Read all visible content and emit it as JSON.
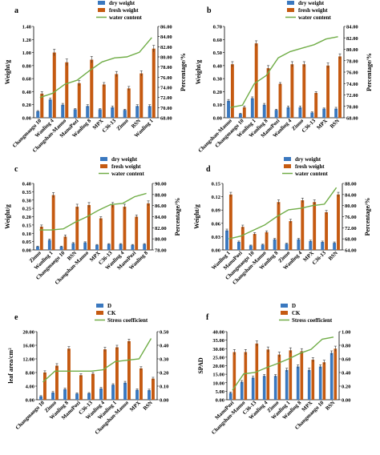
{
  "colors": {
    "bar1": "#3a78bf",
    "bar2": "#c55a11",
    "line": "#70ad47",
    "err": "#333333",
    "axis": "#000000"
  },
  "chart_data": [
    {
      "panel": "a",
      "type": "bar",
      "legend": [
        "dry weight",
        "fresh weight",
        "water content"
      ],
      "ylabel_left": "Weight/g",
      "ylabel_right": "Percentage/%",
      "ylim_left": [
        0,
        1.4
      ],
      "yticks_left": [
        "0.00",
        "0.20",
        "0.40",
        "0.60",
        "0.80",
        "1.00",
        "1.20",
        "1.40"
      ],
      "ylim_right": [
        68,
        86
      ],
      "yticks_right": [
        "68.00",
        "70.00",
        "72.00",
        "74.00",
        "76.00",
        "78.00",
        "80.00",
        "82.00",
        "84.00",
        "86.00"
      ],
      "categories": [
        "Changmaogu 10",
        "Wanling 4",
        "Changshan-Manuo",
        "ManuPozi",
        "Wanling 8",
        "MPX",
        "C36-13",
        "Zinuo",
        "BSN",
        "Wanling 1"
      ],
      "series": [
        {
          "name": "dry weight",
          "kind": "bar",
          "values": [
            0.1,
            0.28,
            0.2,
            0.13,
            0.18,
            0.13,
            0.16,
            0.12,
            0.18,
            0.18
          ],
          "errors": [
            0.01,
            0.02,
            0.02,
            0.01,
            0.02,
            0.01,
            0.02,
            0.01,
            0.02,
            0.02
          ]
        },
        {
          "name": "fresh weight",
          "kind": "bar",
          "values": [
            0.37,
            1.0,
            0.85,
            0.53,
            0.89,
            0.51,
            0.67,
            0.45,
            0.68,
            1.06
          ],
          "errors": [
            0.03,
            0.05,
            0.05,
            0.04,
            0.05,
            0.03,
            0.04,
            0.03,
            0.04,
            0.05
          ]
        },
        {
          "name": "water content",
          "kind": "line",
          "axis": "right",
          "values": [
            72.0,
            72.8,
            74.6,
            75.4,
            77.3,
            79.0,
            79.8,
            80.0,
            80.9,
            83.8
          ]
        }
      ]
    },
    {
      "panel": "b",
      "type": "bar",
      "legend": [
        "dry weight",
        "fresh weight",
        "water content"
      ],
      "ylabel_left": "Weight/g",
      "ylabel_right": "Percentage/%",
      "ylim_left": [
        0,
        0.7
      ],
      "yticks_left": [
        "0.00",
        "0.10",
        "0.20",
        "0.30",
        "0.40",
        "0.50",
        "0.60",
        "0.70"
      ],
      "ylim_right": [
        68,
        84
      ],
      "yticks_right": [
        "68.00",
        "70.00",
        "72.00",
        "74.00",
        "76.00",
        "78.00",
        "80.00",
        "82.00",
        "84.00"
      ],
      "categories": [
        "Changshan-Manuo",
        "Changmaogu 10",
        "Wanling 1",
        "Wanling 8",
        "ManuPozi",
        "Wanling 4",
        "Zinuo",
        "C36-13",
        "MPX",
        "BSN"
      ],
      "series": [
        {
          "name": "dry weight",
          "kind": "bar",
          "values": [
            0.13,
            0.03,
            0.15,
            0.1,
            0.06,
            0.08,
            0.08,
            0.04,
            0.07,
            0.07
          ],
          "errors": [
            0.01,
            0.005,
            0.01,
            0.01,
            0.005,
            0.01,
            0.01,
            0.005,
            0.005,
            0.01
          ]
        },
        {
          "name": "fresh weight",
          "kind": "bar",
          "values": [
            0.41,
            0.08,
            0.57,
            0.38,
            0.26,
            0.41,
            0.41,
            0.19,
            0.4,
            0.47
          ],
          "errors": [
            0.02,
            0.01,
            0.02,
            0.02,
            0.01,
            0.02,
            0.02,
            0.01,
            0.02,
            0.02
          ]
        },
        {
          "name": "water content",
          "kind": "line",
          "axis": "right",
          "values": [
            69.8,
            70.2,
            74.0,
            75.4,
            78.5,
            79.6,
            80.2,
            80.8,
            81.8,
            82.2
          ]
        }
      ]
    },
    {
      "panel": "c",
      "type": "bar",
      "legend": [
        "dry weight",
        "fresh weight",
        "water content"
      ],
      "ylabel_left": "Weight/g",
      "ylabel_right": "Percentage/%",
      "ylim_left": [
        0,
        0.4
      ],
      "yticks_left": [
        "0.00",
        "0.05",
        "0.10",
        "0.15",
        "0.20",
        "0.25",
        "0.30",
        "0.35",
        "0.40"
      ],
      "ylim_right": [
        78,
        90
      ],
      "yticks_right": [
        "78.00",
        "80.00",
        "82.00",
        "84.00",
        "86.00",
        "88.00",
        "90.00"
      ],
      "categories": [
        "Zinuo",
        "Wanling 1",
        "Changmaogu 10",
        "BSN",
        "Changshan-Manuo",
        "MPX",
        "C36-13",
        "Wanling 4",
        "ManuPozi",
        "Wanling 8"
      ],
      "series": [
        {
          "name": "dry weight",
          "kind": "bar",
          "values": [
            0.02,
            0.06,
            0.02,
            0.04,
            0.045,
            0.03,
            0.035,
            0.035,
            0.03,
            0.035
          ],
          "errors": [
            0.003,
            0.005,
            0.003,
            0.004,
            0.004,
            0.003,
            0.003,
            0.003,
            0.003,
            0.003
          ]
        },
        {
          "name": "fresh weight",
          "kind": "bar",
          "values": [
            0.14,
            0.33,
            0.08,
            0.26,
            0.27,
            0.19,
            0.27,
            0.26,
            0.2,
            0.28
          ],
          "errors": [
            0.01,
            0.015,
            0.01,
            0.015,
            0.015,
            0.01,
            0.015,
            0.015,
            0.01,
            0.015
          ]
        },
        {
          "name": "water content",
          "kind": "line",
          "axis": "right",
          "values": [
            81.6,
            81.6,
            81.8,
            83.0,
            84.0,
            85.2,
            86.2,
            86.4,
            87.6,
            88.2
          ]
        }
      ]
    },
    {
      "panel": "d",
      "type": "bar",
      "legend": [
        "dry weight",
        "fresh weight",
        "water content"
      ],
      "ylabel_left": "Weight/g",
      "ylabel_right": "Percentage/%",
      "ylim_left": [
        0,
        0.15
      ],
      "yticks_left": [
        "0.00",
        "0.03",
        "0.06",
        "0.09",
        "0.12",
        "0.15"
      ],
      "ylim_right": [
        64,
        88
      ],
      "yticks_right": [
        "64.00",
        "68.00",
        "72.00",
        "76.00",
        "80.00",
        "84.00",
        "88.00"
      ],
      "categories": [
        "Wanling 1",
        "ManuPozi",
        "Changmaogu 10",
        "Changshan-Manuo",
        "Wanling 8",
        "Zinuo",
        "Wanling 4",
        "MPX",
        "C36-13",
        "BSN"
      ],
      "series": [
        {
          "name": "dry weight",
          "kind": "bar",
          "values": [
            0.044,
            0.018,
            0.01,
            0.012,
            0.024,
            0.014,
            0.024,
            0.02,
            0.018,
            0.016
          ],
          "errors": [
            0.003,
            0.002,
            0.001,
            0.001,
            0.002,
            0.001,
            0.002,
            0.002,
            0.002,
            0.002
          ]
        },
        {
          "name": "fresh weight",
          "kind": "bar",
          "values": [
            0.125,
            0.052,
            0.036,
            0.04,
            0.108,
            0.065,
            0.112,
            0.108,
            0.085,
            0.125
          ],
          "errors": [
            0.005,
            0.004,
            0.003,
            0.003,
            0.005,
            0.004,
            0.005,
            0.005,
            0.004,
            0.005
          ]
        },
        {
          "name": "water content",
          "kind": "line",
          "axis": "right",
          "values": [
            68.0,
            69.0,
            71.0,
            73.0,
            76.0,
            78.5,
            79.0,
            80.0,
            80.5,
            86.5
          ]
        }
      ]
    },
    {
      "panel": "e",
      "type": "bar",
      "legend": [
        "D",
        "CK",
        "Stress coefficient"
      ],
      "ylabel_left": "leaf area/cm²",
      "ylabel_right": "",
      "ylim_left": [
        0,
        20
      ],
      "yticks_left": [
        "0.00",
        "4.00",
        "8.00",
        "12.00",
        "16.00",
        "20.00"
      ],
      "ylim_right": [
        0,
        0.5
      ],
      "yticks_right": [
        "0.00",
        "0.10",
        "0.20",
        "0.30",
        "0.40",
        "0.50"
      ],
      "categories": [
        "Changmaogu 10",
        "Zinuo",
        "Wanling 8",
        "ManuPozi",
        "C36-13",
        "Wanling 4",
        "Wanling 1",
        "Changshan-Manuo",
        "MPX",
        "BSN"
      ],
      "series": [
        {
          "name": "D",
          "kind": "bar",
          "values": [
            1.0,
            2.1,
            3.1,
            1.8,
            1.9,
            3.3,
            4.4,
            5.0,
            2.9,
            2.8
          ],
          "errors": [
            0.2,
            0.3,
            0.3,
            0.2,
            0.2,
            0.3,
            0.3,
            0.4,
            0.3,
            0.3
          ]
        },
        {
          "name": "CK",
          "kind": "bar",
          "values": [
            8.0,
            10.0,
            15.0,
            7.2,
            7.6,
            14.8,
            15.4,
            17.2,
            9.2,
            6.2
          ],
          "errors": [
            0.5,
            0.6,
            0.6,
            0.4,
            0.4,
            0.6,
            0.6,
            0.6,
            0.5,
            0.4
          ]
        },
        {
          "name": "Stress coefficient",
          "kind": "line",
          "axis": "right",
          "values": [
            0.13,
            0.21,
            0.21,
            0.21,
            0.21,
            0.22,
            0.28,
            0.29,
            0.3,
            0.45
          ]
        }
      ]
    },
    {
      "panel": "f",
      "type": "bar",
      "legend": [
        "D",
        "CK",
        "Stress coefficient"
      ],
      "ylabel_left": "SPAD",
      "ylabel_right": "",
      "ylim_left": [
        0,
        40
      ],
      "yticks_left": [
        "0.00",
        "5.00",
        "10.00",
        "15.00",
        "20.00",
        "25.00",
        "30.00",
        "35.00",
        "40.00"
      ],
      "ylim_right": [
        0,
        1.0
      ],
      "yticks_right": [
        "0.00",
        "0.20",
        "0.40",
        "0.60",
        "0.80",
        "1.00"
      ],
      "categories": [
        "ManuPozi",
        "Changshan-Manuo",
        "C36-13",
        "Wanling 4",
        "Zinuo",
        "Wanling 1",
        "Wanling 8",
        "MPX",
        "Changmaogu 10",
        "BSN"
      ],
      "series": [
        {
          "name": "D",
          "kind": "bar",
          "values": [
            4.0,
            10.5,
            13.0,
            14.0,
            14.0,
            17.5,
            19.5,
            17.5,
            19.5,
            27.5
          ],
          "errors": [
            0.5,
            0.8,
            0.8,
            0.8,
            0.8,
            1.0,
            1.0,
            1.0,
            1.0,
            1.2
          ]
        },
        {
          "name": "CK",
          "kind": "bar",
          "values": [
            28.0,
            28.0,
            33.0,
            29.5,
            26.5,
            29.0,
            28.5,
            23.5,
            22.0,
            30.0
          ],
          "errors": [
            1.5,
            1.5,
            1.5,
            1.5,
            1.5,
            1.5,
            1.5,
            1.2,
            1.2,
            1.5
          ]
        },
        {
          "name": "Stress coefficient",
          "kind": "line",
          "axis": "right",
          "values": [
            0.14,
            0.38,
            0.4,
            0.47,
            0.53,
            0.6,
            0.68,
            0.74,
            0.89,
            0.92
          ]
        }
      ]
    }
  ]
}
